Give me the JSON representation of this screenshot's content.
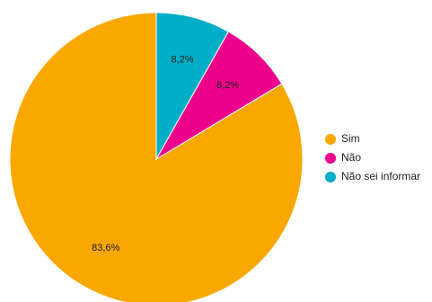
{
  "chart_data": {
    "type": "pie",
    "series": [
      {
        "name": "Sim",
        "value": 83.6,
        "label": "83,6%",
        "color": "#FAA700"
      },
      {
        "name": "Não",
        "value": 8.2,
        "label": "8,2%",
        "color": "#EC008C"
      },
      {
        "name": "Não sei informar",
        "value": 8.2,
        "label": "8,2%",
        "color": "#00AEC7"
      }
    ],
    "legend_position": "right",
    "start_direction": "top",
    "slice_order": "counter-clockwise"
  }
}
